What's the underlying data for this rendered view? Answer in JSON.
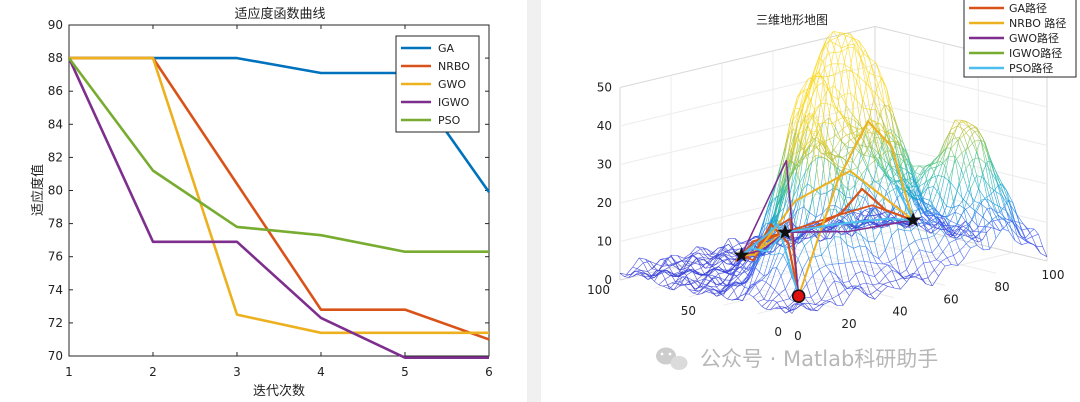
{
  "colors": {
    "GA": "#0072BD",
    "NRBO": "#D95319",
    "GWO": "#EDB120",
    "IGWO": "#7E2F8E",
    "PSO": "#77AC30",
    "PSO_path": "#4DBEEE"
  },
  "chart_data": [
    {
      "type": "line",
      "title": "适应度函数曲线",
      "xlabel": "迭代次数",
      "ylabel": "适应度值",
      "x": [
        1,
        2,
        3,
        4,
        5,
        6
      ],
      "xticks": [
        "1",
        "2",
        "3",
        "4",
        "5",
        "6"
      ],
      "yticks": [
        "70",
        "72",
        "74",
        "76",
        "78",
        "80",
        "82",
        "84",
        "86",
        "88",
        "90"
      ],
      "xlim": [
        1,
        6
      ],
      "ylim": [
        70,
        90
      ],
      "legend_position": "top-right",
      "series": [
        {
          "name": "GA",
          "values": [
            88,
            88,
            88,
            87.1,
            87.1,
            79.9
          ]
        },
        {
          "name": "NRBO",
          "values": [
            88,
            88,
            80.4,
            72.8,
            72.8,
            71
          ]
        },
        {
          "name": "GWO",
          "values": [
            88,
            88,
            72.5,
            71.4,
            71.4,
            71.4
          ]
        },
        {
          "name": "IGWO",
          "values": [
            88,
            76.9,
            76.9,
            72.3,
            69.9,
            69.9
          ]
        },
        {
          "name": "PSO",
          "values": [
            88,
            81.2,
            77.8,
            77.3,
            76.3,
            76.3
          ]
        }
      ]
    },
    {
      "type": "surface",
      "title": "三维地形地图",
      "zticks": [
        "0",
        "10",
        "20",
        "30",
        "40",
        "50"
      ],
      "yticks": [
        "0",
        "50",
        "100"
      ],
      "xticks": [
        "0",
        "20",
        "40",
        "60",
        "80",
        "100"
      ],
      "legend_position": "top-right",
      "legend": [
        "GA路径",
        "NRBO 路径",
        "GWO路径",
        "IGWO路径",
        "PSO路径"
      ],
      "start_point": [
        8,
        8
      ],
      "waypoints": [
        [
          22,
          62
        ],
        [
          58,
          90
        ],
        [
          92,
          66
        ]
      ],
      "peaks": [
        {
          "x": 24,
          "y": 26,
          "h": 43,
          "s": 9
        },
        {
          "x": 38,
          "y": 48,
          "h": 40,
          "s": 9
        },
        {
          "x": 54,
          "y": 58,
          "h": 42,
          "s": 9
        },
        {
          "x": 70,
          "y": 56,
          "h": 38,
          "s": 10
        },
        {
          "x": 52,
          "y": 28,
          "h": 36,
          "s": 10
        },
        {
          "x": 80,
          "y": 18,
          "h": 36,
          "s": 10
        }
      ]
    }
  ],
  "watermark": "公众号 · Matlab科研助手"
}
